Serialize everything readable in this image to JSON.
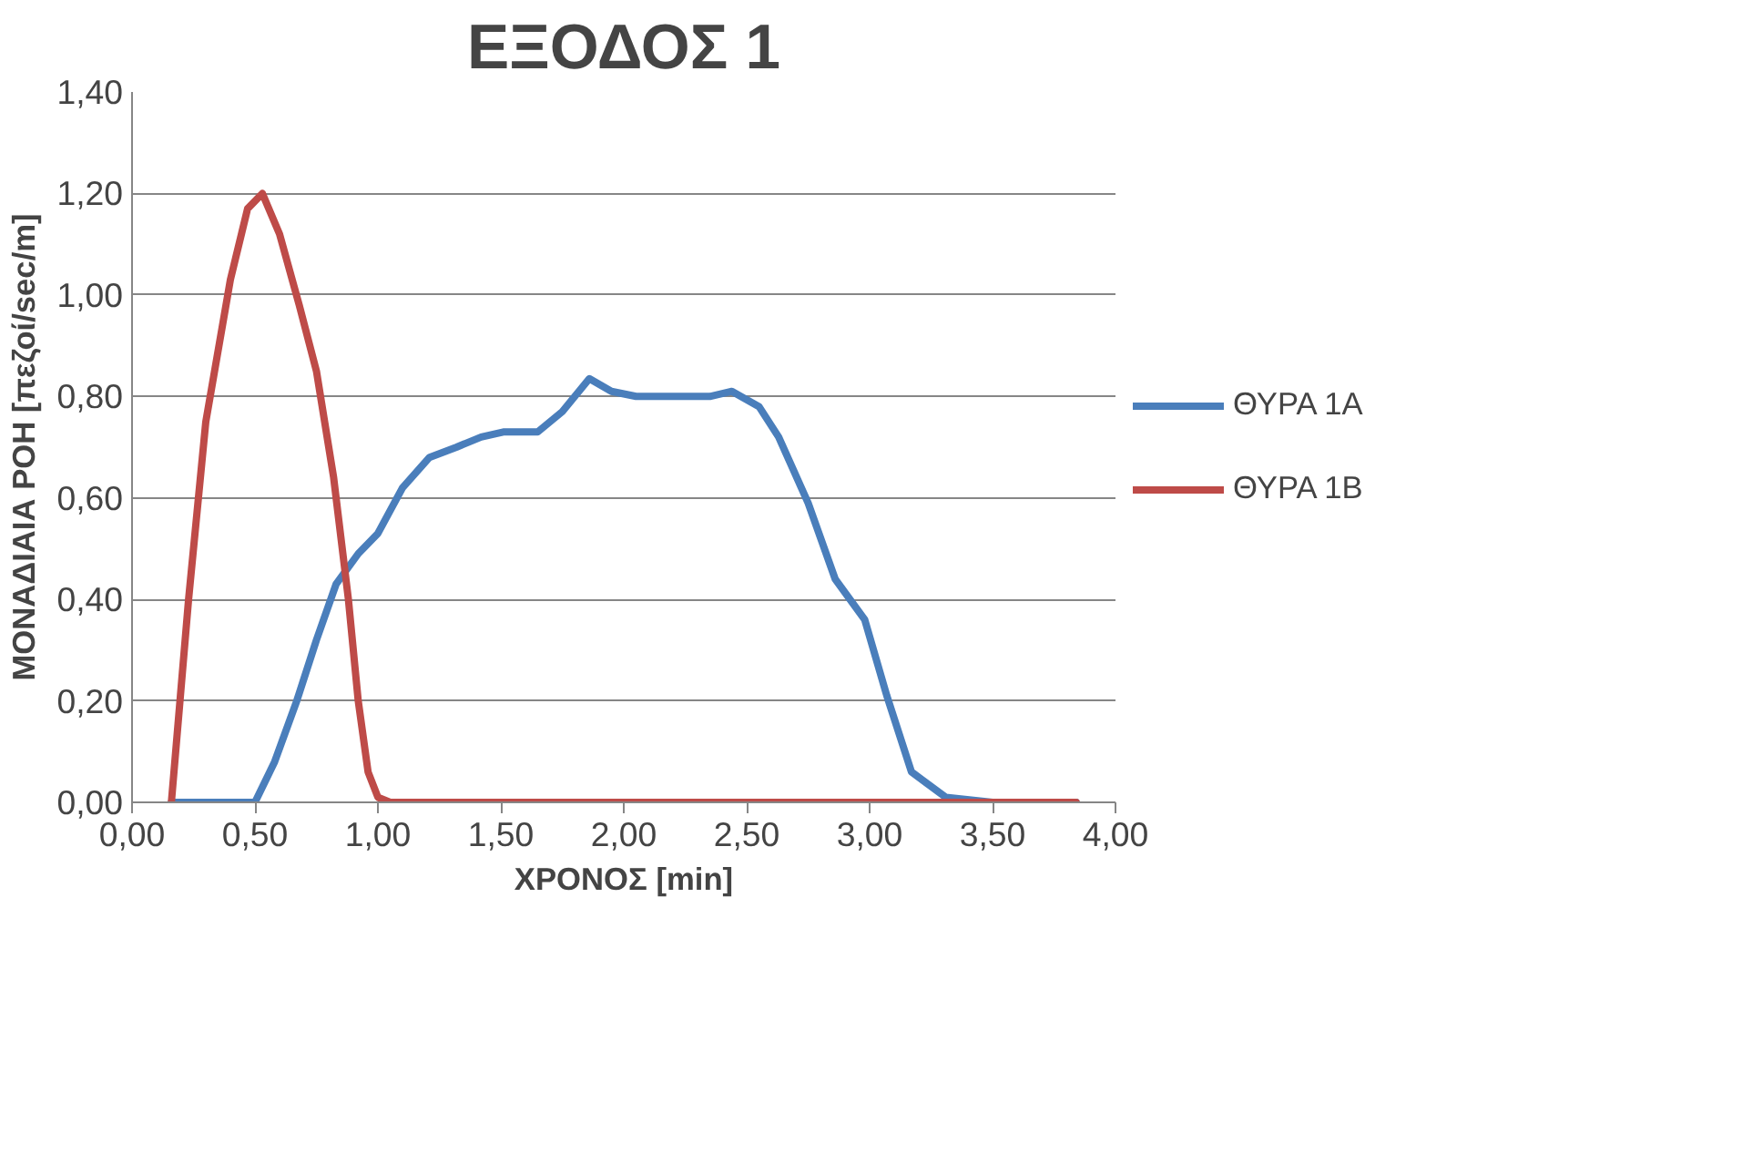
{
  "chart_data": {
    "type": "line",
    "title": "ΕΞΟΔΟΣ 1",
    "xlabel": "ΧΡΟΝΟΣ [min]",
    "ylabel": "ΜΟΝΑΔΙΑΙΑ ΡΟΗ [πεζοί/sec/m]",
    "xlim": [
      0,
      4
    ],
    "ylim": [
      0,
      1.4
    ],
    "xticks": [
      {
        "value": 0,
        "label": "0,00"
      },
      {
        "value": 0.5,
        "label": "0,50"
      },
      {
        "value": 1,
        "label": "1,00"
      },
      {
        "value": 1.5,
        "label": "1,50"
      },
      {
        "value": 2,
        "label": "2,00"
      },
      {
        "value": 2.5,
        "label": "2,50"
      },
      {
        "value": 3,
        "label": "3,00"
      },
      {
        "value": 3.5,
        "label": "3,50"
      },
      {
        "value": 4,
        "label": "4,00"
      }
    ],
    "yticks": [
      {
        "value": 0,
        "label": "0,00"
      },
      {
        "value": 0.2,
        "label": "0,20"
      },
      {
        "value": 0.4,
        "label": "0,40"
      },
      {
        "value": 0.6,
        "label": "0,60"
      },
      {
        "value": 0.8,
        "label": "0,80"
      },
      {
        "value": 1,
        "label": "1,00"
      },
      {
        "value": 1.2,
        "label": "1,20"
      },
      {
        "value": 1.4,
        "label": "1,40"
      }
    ],
    "grid": "y",
    "legend": "right",
    "marker": "none",
    "line_style": "solid",
    "series": [
      {
        "name": "ΘΥΡΑ 1Α",
        "color": "#4a7ebb",
        "x": [
          0.16,
          0.3,
          0.4,
          0.5,
          0.58,
          0.67,
          0.75,
          0.83,
          0.92,
          1.0,
          1.1,
          1.21,
          1.32,
          1.42,
          1.51,
          1.65,
          1.75,
          1.86,
          1.95,
          2.05,
          2.2,
          2.35,
          2.44,
          2.55,
          2.63,
          2.75,
          2.86,
          2.98,
          3.07,
          3.17,
          3.31,
          3.5,
          3.84
        ],
        "values": [
          0,
          0,
          0,
          0,
          0.08,
          0.2,
          0.32,
          0.43,
          0.49,
          0.53,
          0.62,
          0.68,
          0.7,
          0.72,
          0.73,
          0.73,
          0.77,
          0.835,
          0.81,
          0.8,
          0.8,
          0.8,
          0.81,
          0.78,
          0.72,
          0.59,
          0.44,
          0.36,
          0.21,
          0.06,
          0.01,
          0,
          0
        ]
      },
      {
        "name": "ΘΥΡΑ 1Β",
        "color": "#be4b48",
        "x": [
          0.16,
          0.23,
          0.3,
          0.4,
          0.47,
          0.53,
          0.6,
          0.68,
          0.75,
          0.82,
          0.88,
          0.92,
          0.96,
          1.0,
          1.05,
          1.2,
          1.5,
          2.0,
          2.5,
          3.0,
          3.5,
          3.84
        ],
        "values": [
          0,
          0.4,
          0.75,
          1.03,
          1.17,
          1.2,
          1.12,
          0.98,
          0.85,
          0.64,
          0.4,
          0.2,
          0.06,
          0.01,
          0,
          0,
          0,
          0,
          0,
          0,
          0,
          0
        ]
      }
    ]
  }
}
